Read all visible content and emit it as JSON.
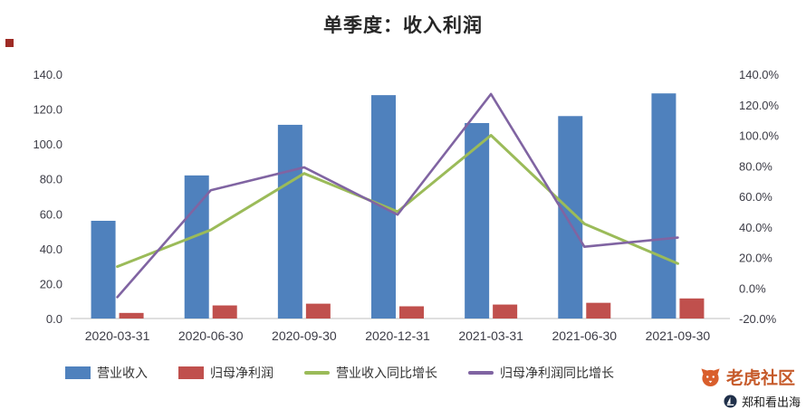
{
  "chart_data": {
    "type": "combo",
    "title": "单季度：收入利润",
    "categories": [
      "2020-03-31",
      "2020-06-30",
      "2020-09-30",
      "2020-12-31",
      "2021-03-31",
      "2021-06-30",
      "2021-09-30"
    ],
    "series": [
      {
        "name": "营业收入",
        "type": "bar",
        "axis": "left",
        "color": "#4F81BD",
        "values": [
          56,
          82,
          111,
          128,
          112,
          116,
          129
        ]
      },
      {
        "name": "归母净利润",
        "type": "bar",
        "axis": "left",
        "color": "#C0504D",
        "values": [
          3.2,
          7.5,
          8.5,
          7.0,
          8.0,
          9.0,
          11.5
        ]
      },
      {
        "name": "营业收入同比增长",
        "type": "line",
        "axis": "right",
        "color": "#9BBB59",
        "values": [
          14,
          38,
          75,
          50,
          100,
          42,
          16
        ]
      },
      {
        "name": "归母净利润同比增长",
        "type": "line",
        "axis": "right",
        "color": "#8064A2",
        "values": [
          -6,
          64,
          79,
          48,
          127,
          27,
          33
        ]
      }
    ],
    "left_axis": {
      "min": 0,
      "max": 140,
      "step": 20,
      "tick_format": "0.0"
    },
    "right_axis": {
      "min": -20,
      "max": 140,
      "step": 20,
      "tick_format": "0.0%"
    },
    "legend_position": "bottom",
    "grid": false
  },
  "watermarks": {
    "tiger": {
      "label": "老虎社区",
      "color": "#C65A2A"
    },
    "zhenghe": {
      "label": "郑和看出海"
    }
  }
}
